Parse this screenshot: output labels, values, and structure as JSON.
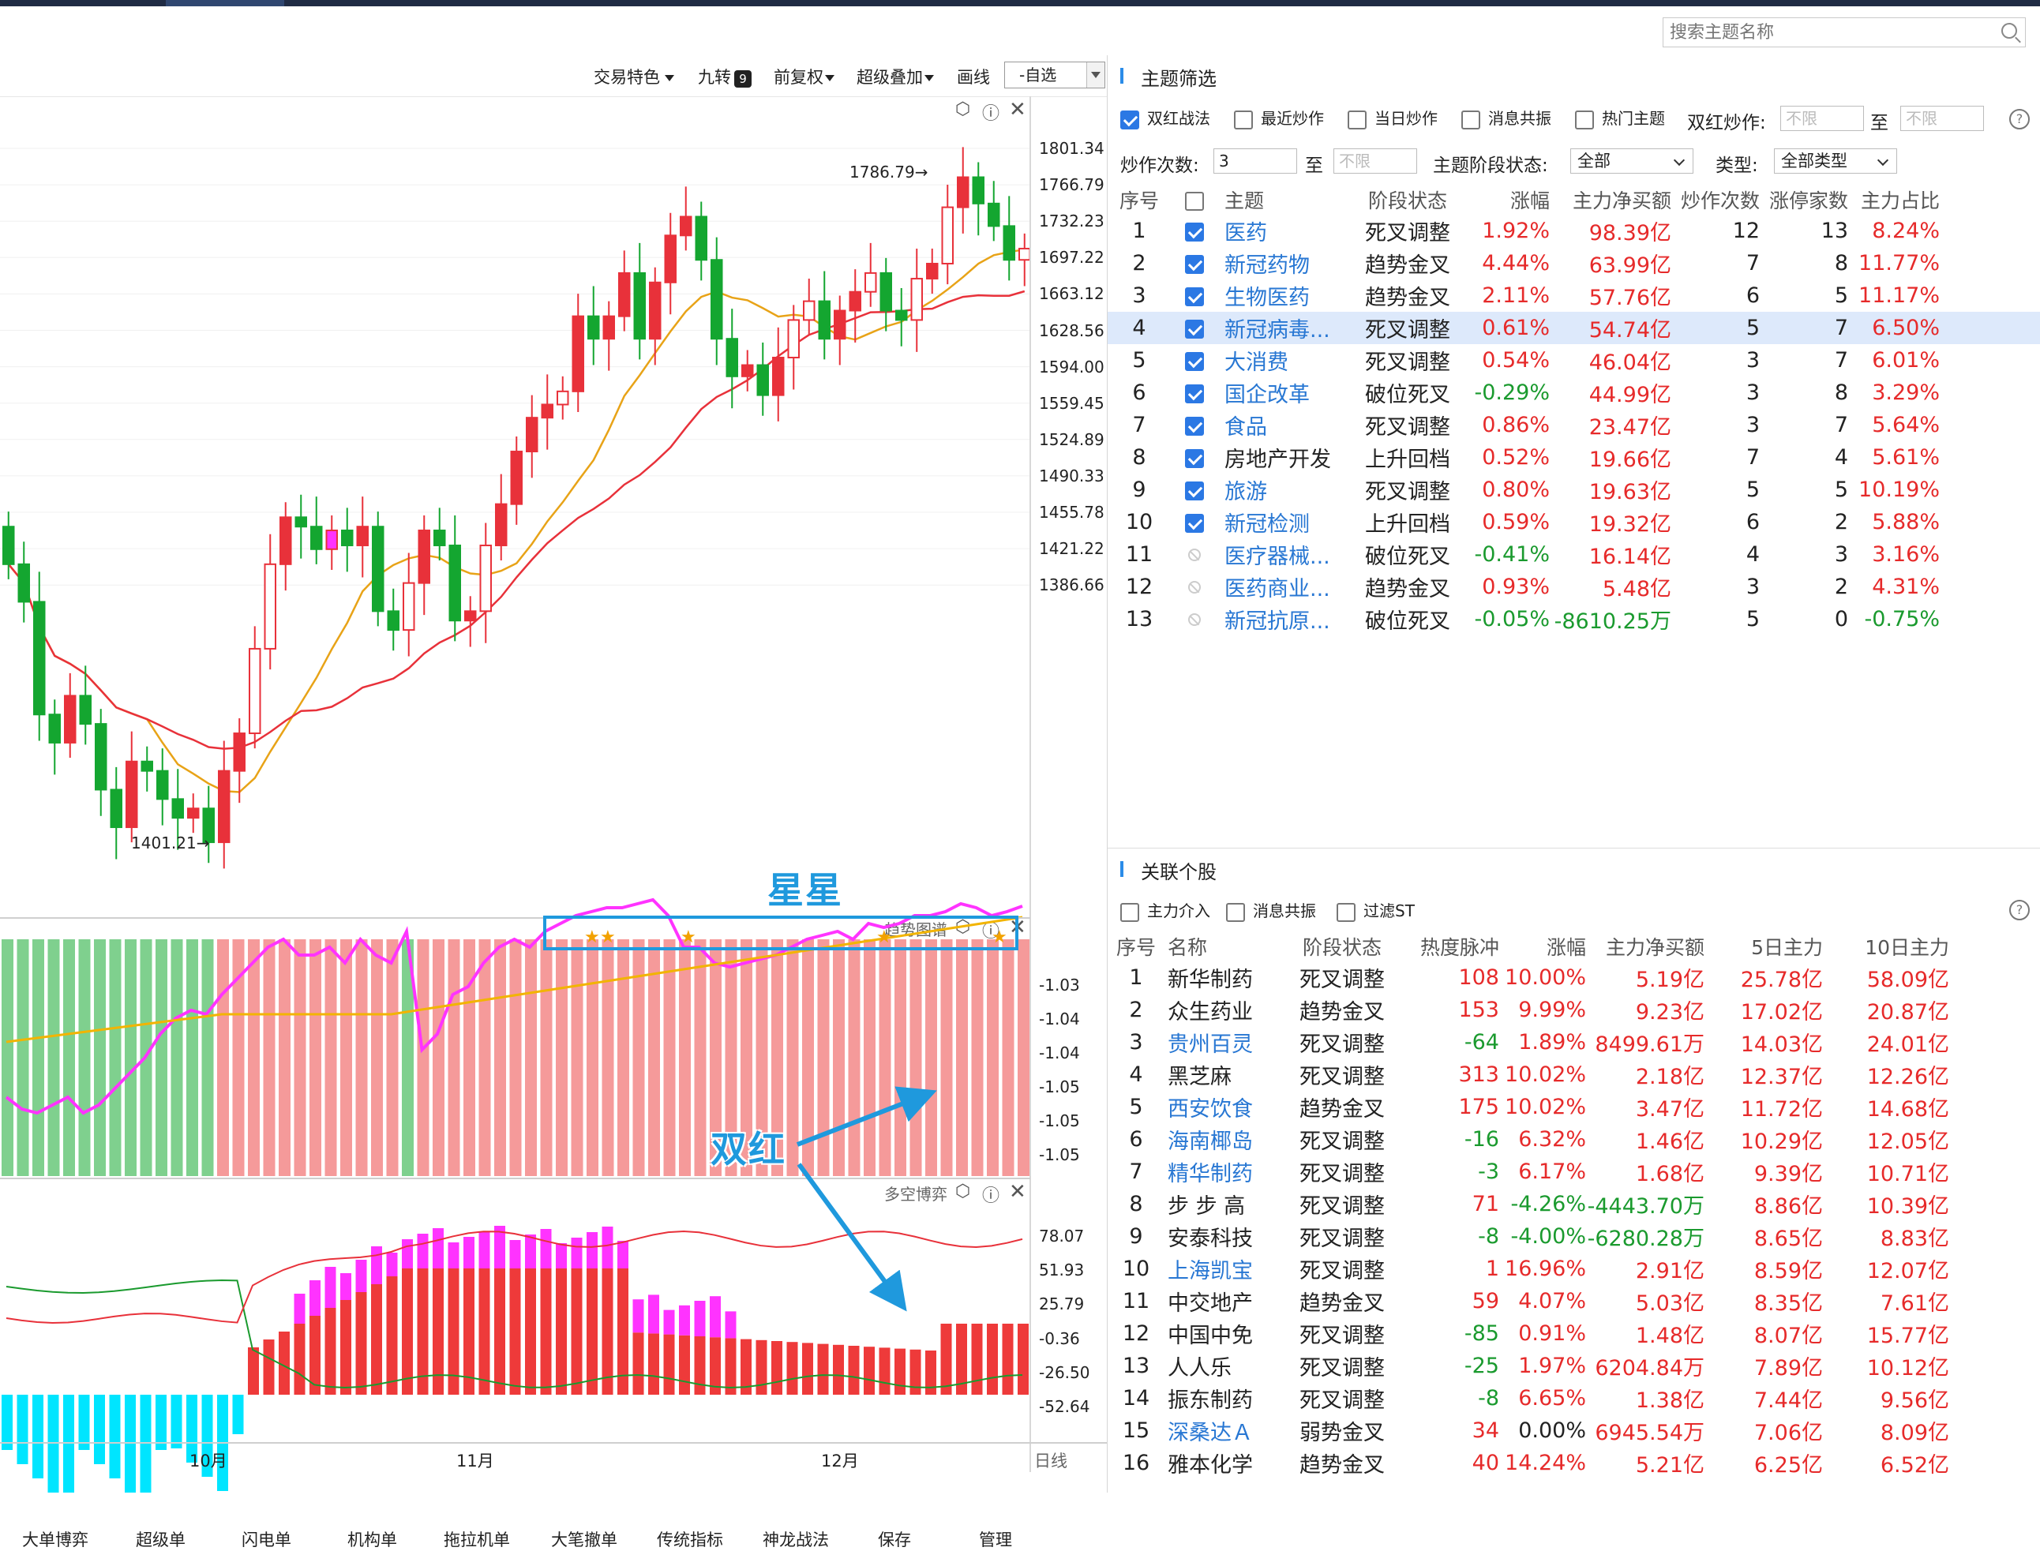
{
  "search": {
    "placeholder": "搜索主题名称"
  },
  "toolbar": {
    "items": [
      "交易特色",
      "九转",
      "前复权",
      "超级叠加",
      "画线"
    ],
    "jiuzhuan_badge": "9",
    "zixuan": "-自选"
  },
  "price_axis": [
    "1801.34",
    "1766.79",
    "1732.23",
    "1697.22",
    "1663.12",
    "1628.56",
    "1594.00",
    "1559.45",
    "1524.89",
    "1490.33",
    "1455.78",
    "1421.22",
    "1386.66"
  ],
  "price_marks": {
    "high": "1786.79→",
    "low": "1401.21→"
  },
  "trend_panel": {
    "title": "趋势图谱",
    "axis": [
      "-1.03",
      "-1.04",
      "-1.04",
      "-1.05",
      "-1.05",
      "-1.05"
    ]
  },
  "game_panel": {
    "title": "多空博弈",
    "axis": [
      "78.07",
      "51.93",
      "25.79",
      "-0.36",
      "-26.50",
      "-52.64"
    ]
  },
  "x_axis": [
    "10月",
    "11月",
    "12月"
  ],
  "period": "日线",
  "annotations": {
    "stars": "星星",
    "double_red": "双红"
  },
  "bottom_tabs": [
    "大单博弈",
    "超级单",
    "闪电单",
    "机构单",
    "拖拉机单",
    "大笔撤单",
    "传统指标",
    "神龙战法",
    "保存",
    "管理"
  ],
  "colors": {
    "up": "#e8313a",
    "down": "#14a630",
    "annotation": "#1f99dd",
    "magenta": "#ff33ff",
    "cyan": "#00e5ff"
  },
  "theme_filter": {
    "title": "主题筛选",
    "filters": [
      {
        "label": "双红战法",
        "checked": true
      },
      {
        "label": "最近炒作",
        "checked": false
      },
      {
        "label": "当日炒作",
        "checked": false
      },
      {
        "label": "消息共振",
        "checked": false
      },
      {
        "label": "热门主题",
        "checked": false
      }
    ],
    "double_red_label": "双红炒作:",
    "to": "至",
    "unlimited": "不限",
    "count_label": "炒作次数:",
    "count_value": "3",
    "stage_label": "主题阶段状态:",
    "stage_value": "全部",
    "type_label": "类型:",
    "type_value": "全部类型",
    "headers": [
      "序号",
      "",
      "主题",
      "阶段状态",
      "涨幅",
      "主力净买额",
      "炒作次数",
      "涨停家数",
      "主力占比"
    ],
    "rows": [
      {
        "no": "1",
        "checked": true,
        "name": "医药",
        "stage": "死叉调整",
        "chg": "1.92%",
        "net": "98.39亿",
        "times": "12",
        "limit": "13",
        "ratio": "8.24%"
      },
      {
        "no": "2",
        "checked": true,
        "name": "新冠药物",
        "stage": "趋势金叉",
        "chg": "4.44%",
        "net": "63.99亿",
        "times": "7",
        "limit": "8",
        "ratio": "11.77%"
      },
      {
        "no": "3",
        "checked": true,
        "name": "生物医药",
        "stage": "趋势金叉",
        "chg": "2.11%",
        "net": "57.76亿",
        "times": "6",
        "limit": "5",
        "ratio": "11.17%"
      },
      {
        "no": "4",
        "checked": true,
        "name": "新冠病毒...",
        "stage": "死叉调整",
        "chg": "0.61%",
        "net": "54.74亿",
        "times": "5",
        "limit": "7",
        "ratio": "6.50%"
      },
      {
        "no": "5",
        "checked": true,
        "name": "大消费",
        "stage": "死叉调整",
        "chg": "0.54%",
        "net": "46.04亿",
        "times": "3",
        "limit": "7",
        "ratio": "6.01%"
      },
      {
        "no": "6",
        "checked": true,
        "name": "国企改革",
        "stage": "破位死叉",
        "chg": "-0.29%",
        "net": "44.99亿",
        "times": "3",
        "limit": "8",
        "ratio": "3.29%"
      },
      {
        "no": "7",
        "checked": true,
        "name": "食品",
        "stage": "死叉调整",
        "chg": "0.86%",
        "net": "23.47亿",
        "times": "3",
        "limit": "7",
        "ratio": "5.64%"
      },
      {
        "no": "8",
        "checked": true,
        "name": "房地产开发",
        "stage": "上升回档",
        "chg": "0.52%",
        "net": "19.66亿",
        "times": "7",
        "limit": "4",
        "ratio": "5.61%"
      },
      {
        "no": "9",
        "checked": true,
        "name": "旅游",
        "stage": "死叉调整",
        "chg": "0.80%",
        "net": "19.63亿",
        "times": "5",
        "limit": "5",
        "ratio": "10.19%"
      },
      {
        "no": "10",
        "checked": true,
        "name": "新冠检测",
        "stage": "上升回档",
        "chg": "0.59%",
        "net": "19.32亿",
        "times": "6",
        "limit": "2",
        "ratio": "5.88%"
      },
      {
        "no": "11",
        "checked": false,
        "name": "医疗器械...",
        "stage": "破位死叉",
        "chg": "-0.41%",
        "net": "16.14亿",
        "times": "4",
        "limit": "3",
        "ratio": "3.16%"
      },
      {
        "no": "12",
        "checked": false,
        "name": "医药商业...",
        "stage": "趋势金叉",
        "chg": "0.93%",
        "net": "5.48亿",
        "times": "3",
        "limit": "2",
        "ratio": "4.31%"
      },
      {
        "no": "13",
        "checked": false,
        "name": "新冠抗原...",
        "stage": "破位死叉",
        "chg": "-0.05%",
        "net": "-8610.25万",
        "times": "5",
        "limit": "0",
        "ratio": "-0.75%"
      }
    ]
  },
  "stocks": {
    "title": "关联个股",
    "filters": [
      "主力介入",
      "消息共振",
      "过滤ST"
    ],
    "headers": [
      "序号",
      "名称",
      "阶段状态",
      "热度脉冲",
      "涨幅",
      "主力净买额",
      "5日主力",
      "10日主力"
    ],
    "rows": [
      {
        "no": "1",
        "name": "新华制药",
        "link": false,
        "stage": "死叉调整",
        "heat": "108",
        "chg": "10.00%",
        "net": "5.19亿",
        "d5": "25.78亿",
        "d10": "58.09亿"
      },
      {
        "no": "2",
        "name": "众生药业",
        "link": false,
        "stage": "趋势金叉",
        "heat": "153",
        "chg": "9.99%",
        "net": "9.23亿",
        "d5": "17.02亿",
        "d10": "20.87亿"
      },
      {
        "no": "3",
        "name": "贵州百灵",
        "link": true,
        "stage": "死叉调整",
        "heat": "-64",
        "chg": "1.89%",
        "net": "8499.61万",
        "d5": "14.03亿",
        "d10": "24.01亿"
      },
      {
        "no": "4",
        "name": "黑芝麻",
        "link": false,
        "stage": "死叉调整",
        "heat": "313",
        "chg": "10.02%",
        "net": "2.18亿",
        "d5": "12.37亿",
        "d10": "12.26亿"
      },
      {
        "no": "5",
        "name": "西安饮食",
        "link": true,
        "stage": "趋势金叉",
        "heat": "175",
        "chg": "10.02%",
        "net": "3.47亿",
        "d5": "11.72亿",
        "d10": "14.68亿"
      },
      {
        "no": "6",
        "name": "海南椰岛",
        "link": true,
        "stage": "死叉调整",
        "heat": "-16",
        "chg": "6.32%",
        "net": "1.46亿",
        "d5": "10.29亿",
        "d10": "12.05亿"
      },
      {
        "no": "7",
        "name": "精华制药",
        "link": true,
        "stage": "死叉调整",
        "heat": "-3",
        "chg": "6.17%",
        "net": "1.68亿",
        "d5": "9.39亿",
        "d10": "10.71亿"
      },
      {
        "no": "8",
        "name": "步 步 高",
        "link": false,
        "stage": "死叉调整",
        "heat": "71",
        "chg": "-4.26%",
        "net": "-4443.70万",
        "d5": "8.86亿",
        "d10": "10.39亿"
      },
      {
        "no": "9",
        "name": "安泰科技",
        "link": false,
        "stage": "死叉调整",
        "heat": "-8",
        "chg": "-4.00%",
        "net": "-6280.28万",
        "d5": "8.65亿",
        "d10": "8.83亿"
      },
      {
        "no": "10",
        "name": "上海凯宝",
        "link": true,
        "stage": "死叉调整",
        "heat": "1",
        "chg": "16.96%",
        "net": "2.91亿",
        "d5": "8.59亿",
        "d10": "12.07亿"
      },
      {
        "no": "11",
        "name": "中交地产",
        "link": false,
        "stage": "趋势金叉",
        "heat": "59",
        "chg": "4.07%",
        "net": "5.03亿",
        "d5": "8.35亿",
        "d10": "7.61亿"
      },
      {
        "no": "12",
        "name": "中国中免",
        "link": false,
        "stage": "死叉调整",
        "heat": "-85",
        "chg": "0.91%",
        "net": "1.48亿",
        "d5": "8.07亿",
        "d10": "15.77亿"
      },
      {
        "no": "13",
        "name": "人人乐",
        "link": false,
        "stage": "死叉调整",
        "heat": "-25",
        "chg": "1.97%",
        "net": "6204.84万",
        "d5": "7.89亿",
        "d10": "10.12亿"
      },
      {
        "no": "14",
        "name": "振东制药",
        "link": false,
        "stage": "死叉调整",
        "heat": "-8",
        "chg": "6.65%",
        "net": "1.38亿",
        "d5": "7.44亿",
        "d10": "9.56亿"
      },
      {
        "no": "15",
        "name": "深桑达Ａ",
        "link": true,
        "stage": "弱势金叉",
        "heat": "34",
        "chg": "0.00%",
        "net": "6945.54万",
        "d5": "7.06亿",
        "d10": "8.09亿"
      },
      {
        "no": "16",
        "name": "雅本化学",
        "link": false,
        "stage": "趋势金叉",
        "heat": "40",
        "chg": "14.24%",
        "net": "5.21亿",
        "d5": "6.25亿",
        "d10": "6.52亿"
      }
    ]
  }
}
